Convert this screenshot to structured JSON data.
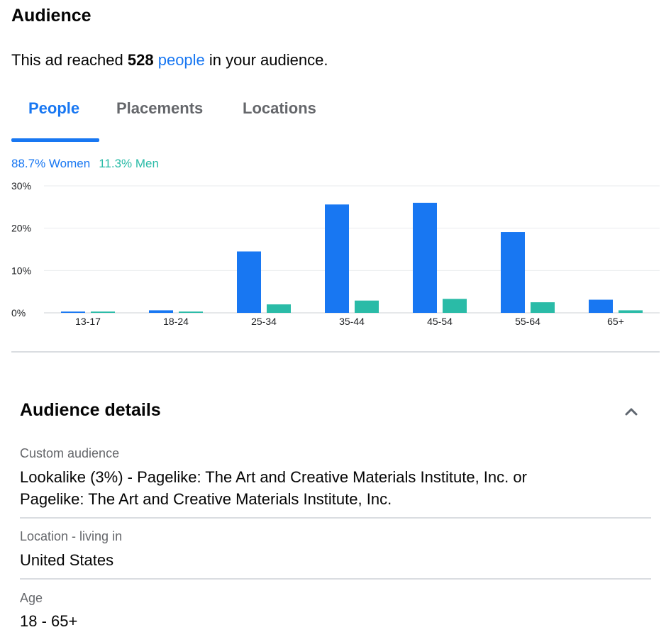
{
  "audience": {
    "title": "Audience",
    "reach_prefix": "This ad reached ",
    "reach_count": "528",
    "reach_link": "people",
    "reach_suffix": " in your audience."
  },
  "tabs": [
    {
      "label": "People",
      "active": true
    },
    {
      "label": "Placements",
      "active": false
    },
    {
      "label": "Locations",
      "active": false
    }
  ],
  "gender_summary": {
    "women": "88.7% Women",
    "men": "11.3% Men"
  },
  "colors": {
    "accent": "#1877f2",
    "women": "#1877f2",
    "men": "#2abba7"
  },
  "chart_data": {
    "type": "bar",
    "categories": [
      "13-17",
      "18-24",
      "25-34",
      "35-44",
      "45-54",
      "55-64",
      "65+"
    ],
    "series": [
      {
        "name": "Women",
        "values": [
          0.3,
          0.6,
          14.5,
          25.6,
          26.0,
          19.1,
          3.1
        ]
      },
      {
        "name": "Men",
        "values": [
          0.3,
          0.3,
          2.0,
          2.9,
          3.3,
          2.5,
          0.6
        ]
      }
    ],
    "y_ticks": [
      "0%",
      "10%",
      "20%",
      "30%"
    ],
    "ylim": [
      0,
      30
    ],
    "grid": true
  },
  "details": {
    "title": "Audience details",
    "collapse_icon": "chevron-up-icon",
    "items": [
      {
        "label": "Custom audience",
        "value_line1": "Lookalike (3%) - Pagelike: The Art and Creative Materials Institute, Inc. or",
        "value_line2": "Pagelike: The Art and Creative Materials Institute, Inc."
      },
      {
        "label": "Location - living in",
        "value_line1": "United States"
      },
      {
        "label": "Age",
        "value_line1": "18 - 65+"
      }
    ]
  }
}
